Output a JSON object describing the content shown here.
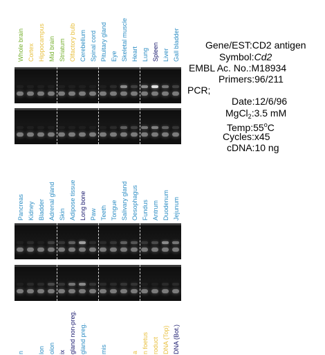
{
  "colors": {
    "green": "#78b030",
    "yellow": "#e8c040",
    "blue": "#2e8ec4",
    "navy": "#1a1a6e"
  },
  "top_labels": [
    {
      "text": "Whole brain",
      "color": "green"
    },
    {
      "text": "Cortex",
      "color": "yellow"
    },
    {
      "text": "Hippocampus",
      "color": "yellow"
    },
    {
      "text": "Mid brain",
      "color": "green"
    },
    {
      "text": "Striatum",
      "color": "green"
    },
    {
      "text": "Olfactory bulb",
      "color": "yellow"
    },
    {
      "text": "Cerebellum",
      "color": "blue"
    },
    {
      "text": "Spinal cord",
      "color": "blue"
    },
    {
      "text": "Pituitary gland",
      "color": "blue"
    },
    {
      "text": "Eye",
      "color": "blue"
    },
    {
      "text": "Skeletal muscle",
      "color": "blue"
    },
    {
      "text": "Heart",
      "color": "blue"
    },
    {
      "text": "Lung",
      "color": "blue"
    },
    {
      "text": "Spleen",
      "color": "navy"
    },
    {
      "text": "Liver",
      "color": "blue"
    },
    {
      "text": "Gall bladder",
      "color": "blue"
    }
  ],
  "middle_labels": [
    {
      "text": "Pancreas",
      "color": "blue"
    },
    {
      "text": "Kidney",
      "color": "blue"
    },
    {
      "text": "Bladder",
      "color": "blue"
    },
    {
      "text": "Adrenal gland",
      "color": "blue"
    },
    {
      "text": "Skin",
      "color": "blue"
    },
    {
      "text": "Adipose tissue",
      "color": "blue"
    },
    {
      "text": "Long bone",
      "color": "navy"
    },
    {
      "text": "Paw",
      "color": "blue"
    },
    {
      "text": "Teeth",
      "color": "blue"
    },
    {
      "text": "Tongue",
      "color": "blue"
    },
    {
      "text": "Salivary gland",
      "color": "blue"
    },
    {
      "text": "Oesophagus",
      "color": "blue"
    },
    {
      "text": "Fundus",
      "color": "blue"
    },
    {
      "text": "Antrum",
      "color": "blue"
    },
    {
      "text": "Duodenum",
      "color": "blue"
    },
    {
      "text": "Jejunum",
      "color": "blue"
    }
  ],
  "bottom_labels": [
    {
      "text": "n",
      "color": "blue"
    },
    {
      "text": "",
      "color": "blue"
    },
    {
      "text": "lon",
      "color": "blue"
    },
    {
      "text": "olon",
      "color": "blue"
    },
    {
      "text": "ix",
      "color": "navy"
    },
    {
      "text": "gland non-preg.",
      "color": "navy"
    },
    {
      "text": "gland preg.",
      "color": "blue"
    },
    {
      "text": "",
      "color": "blue"
    },
    {
      "text": "mis",
      "color": "blue"
    },
    {
      "text": "",
      "color": "blue"
    },
    {
      "text": "",
      "color": "blue"
    },
    {
      "text": "a",
      "color": "yellow"
    },
    {
      "text": "n foetus",
      "color": "yellow"
    },
    {
      "text": "roduct",
      "color": "yellow"
    },
    {
      "text": "DNA (Top)",
      "color": "yellow"
    },
    {
      "text": "DNA (Bot.)",
      "color": "navy"
    }
  ],
  "info": {
    "gene_label": "Gene/EST:",
    "gene_value": "CD2 antigen",
    "symbol_label": "Symbol:",
    "symbol_value": "Cd2",
    "embl_label": "EMBL Ac. No.:",
    "embl_value": "M18934",
    "primers_label": "Primers:",
    "primers_value": "96/211",
    "pcr_label": "PCR;",
    "date_label": "Date:",
    "date_value": "12/6/96",
    "mgcl_label": "MgCl",
    "mgcl_sub": "2",
    "mgcl_value": ":3.5 mM",
    "temp_label": "Temp:",
    "temp_value": "55",
    "temp_unit_sup": "o",
    "temp_unit": "C",
    "cycles_label": "Cycles:",
    "cycles_value": "x45",
    "cdna_label": "cDNA:",
    "cdna_value": "10 ng"
  },
  "gels": [
    {
      "id": "gel-1",
      "upper": [
        0.05,
        0.05,
        0.05,
        0.05,
        0.05,
        0.05,
        0.05,
        0.05,
        0.05,
        0.1,
        0.55,
        0.2,
        0.55,
        0.95,
        0.45,
        0.2
      ]
    },
    {
      "id": "gel-2",
      "upper": [
        0.05,
        0.05,
        0.05,
        0.05,
        0.05,
        0.05,
        0.05,
        0.05,
        0.05,
        0.1,
        0.35,
        0.2,
        0.45,
        0.5,
        0.35,
        0.15
      ]
    },
    {
      "id": "gel-3",
      "upper": [
        0.05,
        0.1,
        0.05,
        0.2,
        0.15,
        0.35,
        0.65,
        0.1,
        0.1,
        0.15,
        0.35,
        0.3,
        0.15,
        0.25,
        0.55,
        0.45
      ]
    },
    {
      "id": "gel-4",
      "upper": [
        0.05,
        0.1,
        0.1,
        0.25,
        0.15,
        0.45,
        0.55,
        0.15,
        0.1,
        0.1,
        0.15,
        0.15,
        0.05,
        0.05,
        0.1,
        0.1
      ]
    }
  ]
}
